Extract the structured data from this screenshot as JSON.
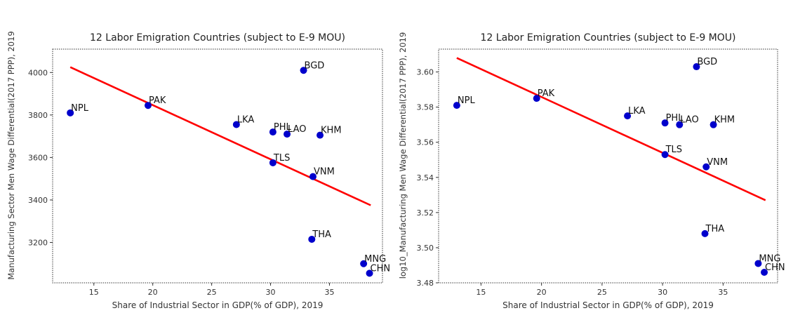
{
  "chart_data": [
    {
      "type": "scatter",
      "title": "12 Labor Emigration Countries (subject to E-9 MOU)",
      "xlabel": "Share of Industrial Sector in GDP(% of GDP), 2019",
      "ylabel": "Manufacturing Sector Men Wage Differential(2017 PPP), 2019",
      "xlim": [
        11.5,
        39.5
      ],
      "ylim": [
        3010,
        4110
      ],
      "xticks": [
        "15",
        "20",
        "25",
        "30",
        "35"
      ],
      "xtick_values": [
        15,
        20,
        25,
        30,
        35
      ],
      "yticks": [
        "3200",
        "3400",
        "3600",
        "3800",
        "4000"
      ],
      "ytick_values": [
        3200,
        3400,
        3600,
        3800,
        4000
      ],
      "grid": false,
      "point_color": "#0000cc",
      "line_color": "#ff0000",
      "points": [
        {
          "label": "NPL",
          "x": 13.0,
          "y": 3810
        },
        {
          "label": "PAK",
          "x": 19.6,
          "y": 3845
        },
        {
          "label": "LKA",
          "x": 27.1,
          "y": 3755
        },
        {
          "label": "BGD",
          "x": 32.8,
          "y": 4010
        },
        {
          "label": "PHL",
          "x": 30.2,
          "y": 3720
        },
        {
          "label": "LAO",
          "x": 31.4,
          "y": 3710
        },
        {
          "label": "KHM",
          "x": 34.2,
          "y": 3705
        },
        {
          "label": "TLS",
          "x": 30.2,
          "y": 3575
        },
        {
          "label": "VNM",
          "x": 33.6,
          "y": 3510
        },
        {
          "label": "THA",
          "x": 33.5,
          "y": 3215
        },
        {
          "label": "MNG",
          "x": 37.9,
          "y": 3100
        },
        {
          "label": "CHN",
          "x": 38.4,
          "y": 3055
        }
      ],
      "fit_line": {
        "x": [
          13.0,
          38.5
        ],
        "y": [
          4025,
          3375
        ]
      }
    },
    {
      "type": "scatter",
      "title": "12 Labor Emigration Countries (subject to E-9 MOU)",
      "xlabel": "Share of Industrial Sector in GDP(% of GDP), 2019",
      "ylabel": "log10_Manufacturing Men Wage Differential(2017 PPP), 2019",
      "xlim": [
        11.5,
        39.5
      ],
      "ylim": [
        3.48,
        3.613
      ],
      "xticks": [
        "15",
        "20",
        "25",
        "30",
        "35"
      ],
      "xtick_values": [
        15,
        20,
        25,
        30,
        35
      ],
      "yticks": [
        "3.48",
        "3.50",
        "3.52",
        "3.54",
        "3.56",
        "3.58",
        "3.60"
      ],
      "ytick_values": [
        3.48,
        3.5,
        3.52,
        3.54,
        3.56,
        3.58,
        3.6
      ],
      "grid": false,
      "point_color": "#0000cc",
      "line_color": "#ff0000",
      "points": [
        {
          "label": "NPL",
          "x": 13.0,
          "y": 3.581
        },
        {
          "label": "PAK",
          "x": 19.6,
          "y": 3.585
        },
        {
          "label": "LKA",
          "x": 27.1,
          "y": 3.575
        },
        {
          "label": "BGD",
          "x": 32.8,
          "y": 3.603
        },
        {
          "label": "PHL",
          "x": 30.2,
          "y": 3.571
        },
        {
          "label": "LAO",
          "x": 31.4,
          "y": 3.57
        },
        {
          "label": "KHM",
          "x": 34.2,
          "y": 3.57
        },
        {
          "label": "TLS",
          "x": 30.2,
          "y": 3.553
        },
        {
          "label": "VNM",
          "x": 33.6,
          "y": 3.546
        },
        {
          "label": "THA",
          "x": 33.5,
          "y": 3.508
        },
        {
          "label": "MNG",
          "x": 37.9,
          "y": 3.491
        },
        {
          "label": "CHN",
          "x": 38.4,
          "y": 3.486
        }
      ],
      "fit_line": {
        "x": [
          13.0,
          38.5
        ],
        "y": [
          3.608,
          3.527
        ]
      }
    }
  ]
}
